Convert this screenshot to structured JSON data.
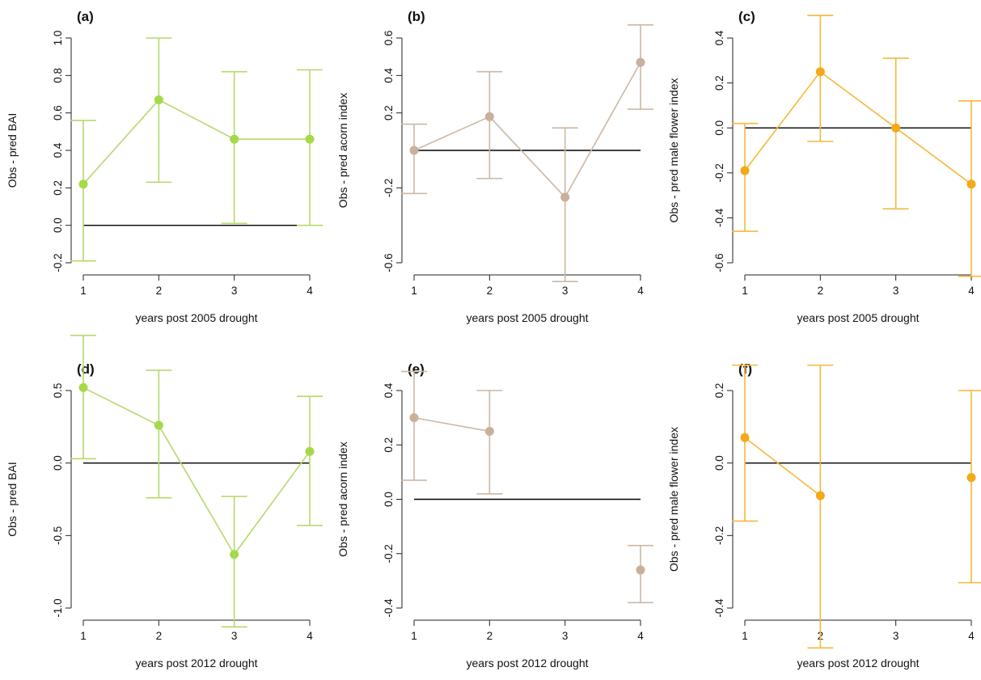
{
  "chart_data": [
    {
      "type": "line",
      "panel_label": "(a)",
      "xlabel": "years post 2005 drought",
      "ylabel": "Obs - pred BAI",
      "x": [
        1,
        2,
        3,
        4
      ],
      "x_ticks": [
        "1",
        "2",
        "3",
        "4"
      ],
      "y": [
        0.22,
        0.67,
        0.46,
        0.46
      ],
      "err_low": [
        -0.19,
        0.23,
        0.01,
        0.0
      ],
      "err_high": [
        0.56,
        1.0,
        0.82,
        0.83
      ],
      "y_ticks": [
        "-0.2",
        "0.0",
        "0.2",
        "0.4",
        "0.6",
        "0.8",
        "1.0"
      ],
      "ylim": [
        -0.2,
        1.0
      ],
      "zero_line": true,
      "color": "#b5d96a",
      "point_color": "#a5d94a"
    },
    {
      "type": "line",
      "panel_label": "(b)",
      "xlabel": "years post 2005 drought",
      "ylabel": "Obs - pred acorn index",
      "x": [
        1,
        2,
        3,
        4
      ],
      "x_ticks": [
        "1",
        "2",
        "3",
        "4"
      ],
      "y": [
        0.0,
        0.18,
        -0.25,
        0.47
      ],
      "err_low": [
        -0.23,
        -0.15,
        -0.7,
        0.22
      ],
      "err_high": [
        0.14,
        0.42,
        0.12,
        0.67
      ],
      "y_ticks": [
        "-0.6",
        "-0.2",
        "0.2",
        "0.4",
        "0.6"
      ],
      "ylim": [
        -0.6,
        0.6
      ],
      "zero_line": true,
      "color": "#cbb8a4",
      "point_color": "#c8b09a"
    },
    {
      "type": "line",
      "panel_label": "(c)",
      "xlabel": "years post 2005 drought",
      "ylabel": "Obs - pred male flower index",
      "x": [
        1,
        2,
        3,
        4
      ],
      "x_ticks": [
        "1",
        "2",
        "3",
        "4"
      ],
      "y": [
        -0.19,
        0.25,
        0.0,
        -0.25
      ],
      "err_low": [
        -0.46,
        -0.06,
        -0.36,
        -0.66
      ],
      "err_high": [
        0.02,
        0.5,
        0.31,
        0.12
      ],
      "y_ticks": [
        "-0.6",
        "-0.4",
        "-0.2",
        "0.0",
        "0.2",
        "0.4"
      ],
      "ylim": [
        -0.6,
        0.4
      ],
      "zero_line": true,
      "color": "#f6b83a",
      "point_color": "#f4a81a"
    },
    {
      "type": "line",
      "panel_label": "(d)",
      "xlabel": "years post 2012 drought",
      "ylabel": "Obs - pred BAI",
      "x": [
        1,
        2,
        3,
        4
      ],
      "x_ticks": [
        "1",
        "2",
        "3",
        "4"
      ],
      "y": [
        0.52,
        0.26,
        -0.63,
        0.08
      ],
      "err_low": [
        0.03,
        -0.24,
        -1.13,
        -0.43
      ],
      "err_high": [
        0.88,
        0.64,
        -0.23,
        0.46
      ],
      "y_ticks": [
        "-1.0",
        "-0.5",
        "0.0",
        "0.5"
      ],
      "ylim": [
        -1.0,
        0.5
      ],
      "zero_line": true,
      "color": "#b5d96a",
      "point_color": "#a5d94a"
    },
    {
      "type": "line",
      "panel_label": "(e)",
      "xlabel": "years post 2012 drought",
      "ylabel": "Obs - pred acorn index",
      "x": [
        1,
        2,
        3,
        4
      ],
      "x_ticks": [
        "1",
        "2",
        "3",
        "4"
      ],
      "y": [
        0.3,
        0.25,
        null,
        -0.26
      ],
      "err_low": [
        0.07,
        0.02,
        null,
        -0.38
      ],
      "err_high": [
        0.47,
        0.4,
        null,
        -0.17
      ],
      "y_ticks": [
        "-0.4",
        "-0.2",
        "0.0",
        "0.2",
        "0.4"
      ],
      "ylim": [
        -0.4,
        0.4
      ],
      "zero_line": true,
      "color": "#cbb8a4",
      "point_color": "#c8b09a"
    },
    {
      "type": "line",
      "panel_label": "(f)",
      "xlabel": "years post 2012 drought",
      "ylabel": "Obs - pred male flower index",
      "x": [
        1,
        2,
        3,
        4
      ],
      "x_ticks": [
        "1",
        "2",
        "3",
        "4"
      ],
      "y": [
        0.07,
        -0.09,
        null,
        -0.04
      ],
      "err_low": [
        -0.16,
        -0.51,
        null,
        -0.33
      ],
      "err_high": [
        0.27,
        0.27,
        null,
        0.2
      ],
      "y_ticks": [
        "-0.4",
        "-0.2",
        "0.0",
        "0.2"
      ],
      "ylim": [
        -0.4,
        0.2
      ],
      "zero_line": true,
      "color": "#f6b83a",
      "point_color": "#f4a81a"
    }
  ]
}
